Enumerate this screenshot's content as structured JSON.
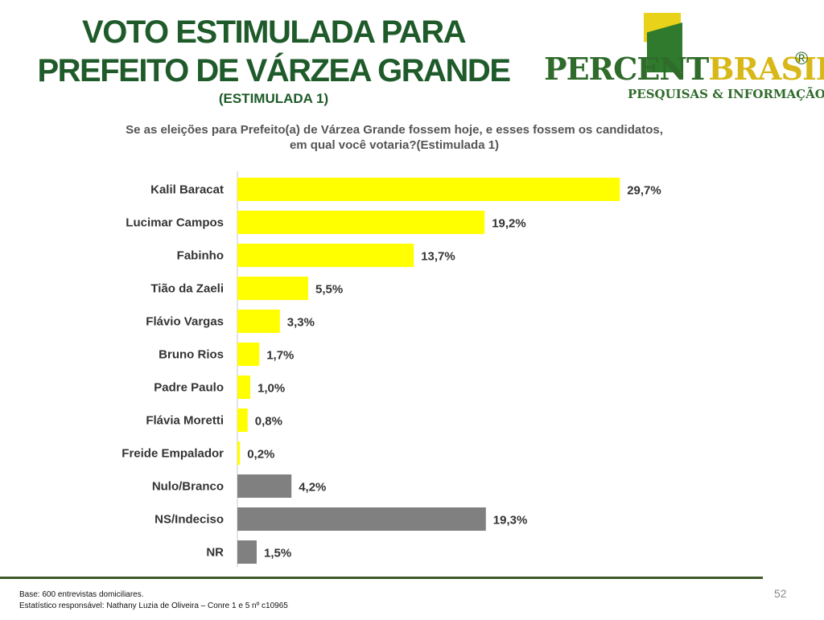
{
  "header": {
    "title_line1": "VOTO ESTIMULADA PARA",
    "title_line2": "PREFEITO DE VÁRZEA GRANDE",
    "subtitle": "(ESTIMULADA 1)"
  },
  "logo": {
    "word_part1": "PERCENT",
    "word_part2": "BRASIL",
    "registered": "®",
    "tagline": "PESQUISAS & INFORMAÇÃO"
  },
  "question": {
    "line1": "Se as eleições para Prefeito(a) de Várzea Grande fossem hoje, e esses fossem os candidatos,",
    "line2": "em qual você votaria?(Estimulada 1)"
  },
  "chart_data": {
    "type": "bar",
    "orientation": "horizontal",
    "categories": [
      "Kalil Baracat",
      "Lucimar Campos",
      "Fabinho",
      "Tião da Zaeli",
      "Flávio Vargas",
      "Bruno Rios",
      "Padre Paulo",
      "Flávia Moretti",
      "Freide Empalador",
      "Nulo/Branco",
      "NS/Indeciso",
      "NR"
    ],
    "values": [
      29.7,
      19.2,
      13.7,
      5.5,
      3.3,
      1.7,
      1.0,
      0.8,
      0.2,
      4.2,
      19.3,
      1.5
    ],
    "value_labels": [
      "29,7%",
      "19,2%",
      "13,7%",
      "5,5%",
      "3,3%",
      "1,7%",
      "1,0%",
      "0,8%",
      "0,2%",
      "4,2%",
      "19,3%",
      "1,5%"
    ],
    "colors": [
      "#ffff00",
      "#ffff00",
      "#ffff00",
      "#ffff00",
      "#ffff00",
      "#ffff00",
      "#ffff00",
      "#ffff00",
      "#ffff00",
      "#808080",
      "#808080",
      "#808080"
    ],
    "xlim": [
      0,
      30
    ],
    "grid": false,
    "legend": "none"
  },
  "footer": {
    "base": "Base: 600 entrevistas domiciliares.",
    "statistician": "Estatístico responsável: Nathany Luzia de Oliveira – Conre 1 e 5 nº c10965",
    "page_number": "52"
  }
}
